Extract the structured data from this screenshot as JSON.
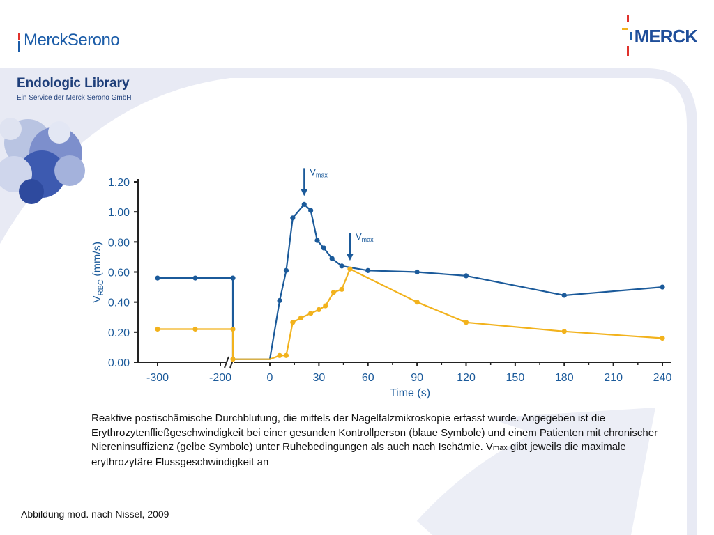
{
  "header": {
    "left_brand": "MerckSerono",
    "right_brand": "MERCK",
    "library_title": "Endologic Library",
    "library_subtitle": "Ein Service der Merck Serono GmbH"
  },
  "colors": {
    "blue_series": "#1b5a9a",
    "yellow_series": "#f2b21c",
    "axis_text": "#1b5a9a",
    "decor": "#e7e9f4"
  },
  "chart_data": {
    "type": "line",
    "xlabel": "Time (s)",
    "ylabel_main": "V",
    "ylabel_sub": "RBC",
    "ylabel_unit": " (mm/s)",
    "xticks": [
      "-300",
      "-200",
      "0",
      "30",
      "60",
      "90",
      "120",
      "150",
      "180",
      "210",
      "240"
    ],
    "yticks": [
      "0.00",
      "0.20",
      "0.40",
      "0.60",
      "0.80",
      "1.00",
      "1.20"
    ],
    "ylim": [
      0,
      1.2
    ],
    "annotations": [
      {
        "main": "V",
        "sub": "max",
        "series": "blue",
        "x": 21,
        "y": 1.05
      },
      {
        "main": "V",
        "sub": "max",
        "series": "yellow",
        "x": 49,
        "y": 0.62
      }
    ],
    "series": [
      {
        "key": "blue",
        "x": [
          -300,
          -260,
          -220,
          -220,
          0,
          6,
          10,
          14,
          21,
          25,
          29,
          33,
          38,
          44,
          60,
          90,
          120,
          180,
          240
        ],
        "y": [
          0.56,
          0.56,
          0.56,
          0.02,
          0.02,
          0.41,
          0.61,
          0.96,
          1.05,
          1.01,
          0.81,
          0.76,
          0.69,
          0.64,
          0.61,
          0.6,
          0.575,
          0.445,
          0.5
        ],
        "markers": [
          true,
          true,
          true,
          false,
          false,
          true,
          true,
          true,
          true,
          true,
          true,
          true,
          true,
          true,
          true,
          true,
          true,
          true,
          true
        ]
      },
      {
        "key": "yellow",
        "x": [
          -300,
          -260,
          -220,
          -220,
          0,
          6,
          10,
          14,
          19,
          25,
          30,
          34,
          39,
          44,
          49,
          90,
          120,
          180,
          240
        ],
        "y": [
          0.22,
          0.22,
          0.22,
          0.02,
          0.02,
          0.045,
          0.045,
          0.265,
          0.295,
          0.325,
          0.35,
          0.375,
          0.465,
          0.485,
          0.62,
          0.4,
          0.265,
          0.205,
          0.16
        ],
        "markers": [
          true,
          true,
          true,
          true,
          false,
          true,
          true,
          true,
          true,
          true,
          true,
          true,
          true,
          true,
          true,
          true,
          true,
          true,
          true
        ]
      }
    ]
  },
  "caption": {
    "text_before": "Reaktive postischämische Durchblutung, die mittels der Nagelfalzmikroskopie erfasst wurde. Angegeben ist die Erythrozytenfließgeschwindigkeit bei einer gesunden Kontrollperson (blaue Symbole) und einem Patienten mit chronischer Niereninsuffizienz (gelbe Symbole) unter Ruhebedingungen als auch nach Ischämie. V",
    "text_sub": "max",
    "text_after": " gibt jeweils die maximale erythrozytäre Flussgeschwindigkeit an"
  },
  "source": "Abbildung mod. nach Nissel, 2009"
}
